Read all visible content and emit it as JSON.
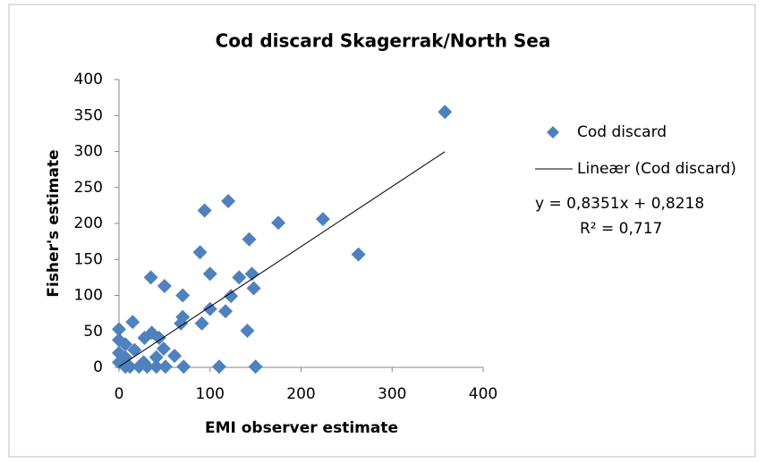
{
  "chart_data": {
    "type": "scatter",
    "title": "Cod discard Skagerrak/North Sea",
    "x_label": "EMI observer estimate",
    "y_label": "Fisher's estimate",
    "xlim": [
      0,
      400
    ],
    "xticks": [
      0,
      100,
      200,
      300,
      400
    ],
    "ylim": [
      0,
      400
    ],
    "yticks": [
      0,
      50,
      100,
      150,
      200,
      250,
      300,
      350,
      400
    ],
    "grid": false,
    "series": [
      {
        "name": "Cod discard",
        "color": "#4f81bd",
        "x": [
          358,
          94,
          120,
          224,
          175,
          143,
          263,
          89,
          100,
          146,
          132,
          35,
          50,
          148,
          70,
          123,
          100,
          117,
          70,
          68,
          91,
          15,
          141,
          0,
          36,
          44,
          28,
          49,
          7,
          17,
          0,
          0,
          7,
          0,
          27,
          41,
          12,
          31,
          51,
          71,
          110,
          150,
          41,
          7,
          22,
          61
        ],
        "values": [
          355,
          218,
          231,
          206,
          201,
          178,
          157,
          160,
          130,
          130,
          125,
          125,
          113,
          110,
          100,
          99,
          81,
          78,
          70,
          61,
          61,
          63,
          51,
          53,
          48,
          41,
          41,
          26,
          32,
          24,
          38,
          20,
          14,
          7,
          7,
          14,
          1,
          1,
          1,
          1,
          1,
          1,
          1,
          1,
          1,
          16
        ]
      }
    ],
    "trendline": {
      "name": "Lineær (Cod discard)",
      "equation": "y = 0,8351x + 0,8218",
      "r_squared": "R² = 0,717",
      "slope": 0.8351,
      "intercept": 0.8218,
      "color": "#000000"
    }
  }
}
